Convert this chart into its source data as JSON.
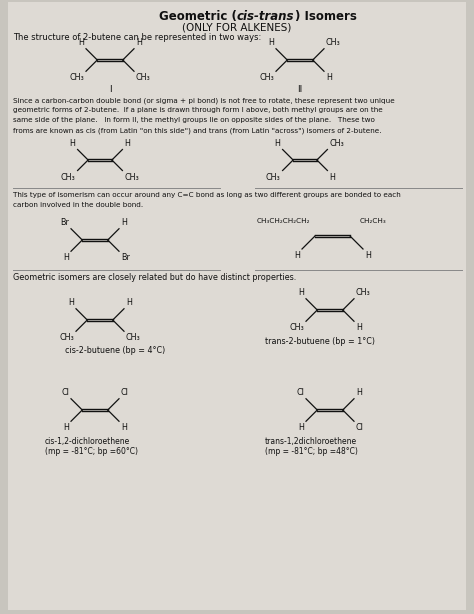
{
  "bg_color": "#c8c5be",
  "paper_color": "#dedad4",
  "text_color": "#111111",
  "body_text1": "The structure of 2-butene can be represented in two ways:",
  "para1_lines": [
    "Since a carbon-carbon double bond (or sigma + pi bond) is not free to rotate, these represent two unique",
    "geometric forms of 2-butene.  If a plane is drawn through form I above, both methyl groups are on the",
    "same side of the plane.   In form II, the methyl groups lie on opposite sides of the plane.   These two",
    "froms are known as cis (from Latin \"on this side\") and trans (from Latin \"across\") isomers of 2-butene."
  ],
  "para2_lines": [
    "This type of isomerism can occur around any C=C bond as long as two different groups are bonded to each",
    "carbon involved in the double bond."
  ],
  "para3": "Geometric isomers are closely related but do have distinct properties.",
  "label_cis_but": "cis-2-butuene (bp = 4°C)",
  "label_trans_but": "trans-2-butuene (bp = 1°C)",
  "label_cis_dcl": "cis-1,2-dichloroethene\n(mp = -81°C; bp =60°C)",
  "label_trans_dcl": "trans-1,2dichloroethene\n(mp = -81°C; bp =48°C)"
}
